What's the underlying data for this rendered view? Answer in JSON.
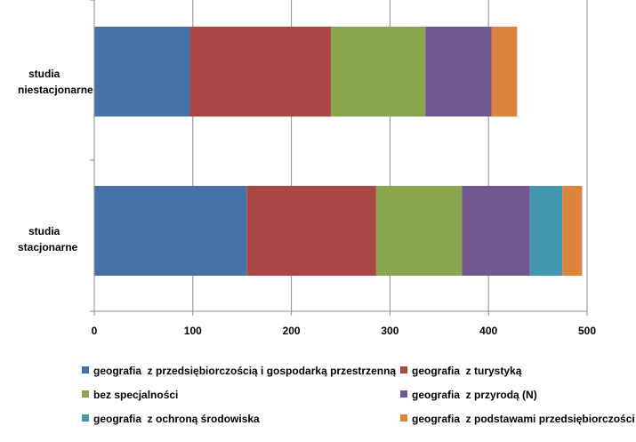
{
  "chart_data": {
    "type": "bar",
    "orientation": "horizontal",
    "stacked": true,
    "categories": [
      [
        "studia",
        "niestacjonarne"
      ],
      [
        "studia",
        "stacjonarne"
      ]
    ],
    "series": [
      {
        "name": "geografia  z przedsiębiorczością i gospodarką przestrzenną",
        "color": "#4572A7",
        "values": [
          97,
          155
        ]
      },
      {
        "name": "geografia  z turystyką",
        "color": "#AA4643",
        "values": [
          143,
          131
        ]
      },
      {
        "name": "bez specjalności",
        "color": "#89A54E",
        "values": [
          96,
          87
        ]
      },
      {
        "name": "geografia  z przyrodą (N)",
        "color": "#71588F",
        "values": [
          67,
          69
        ]
      },
      {
        "name": "geografia  z ochroną środowiska",
        "color": "#4198AF",
        "values": [
          0,
          33
        ]
      },
      {
        "name": "geografia  z podstawami przedsiębiorczości (N)",
        "color": "#DB843D",
        "values": [
          26,
          20
        ]
      }
    ],
    "xlim": [
      0,
      500
    ],
    "xticks": [
      0,
      100,
      200,
      300,
      400,
      500
    ],
    "grid": true,
    "legend_position": "bottom"
  }
}
